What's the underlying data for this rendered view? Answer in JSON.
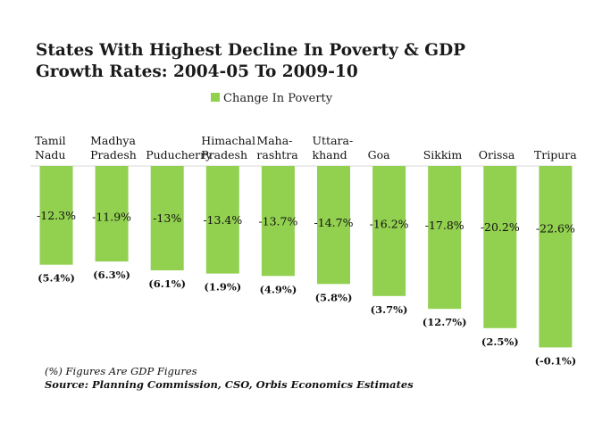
{
  "chart_data": {
    "type": "bar",
    "title_lines": [
      "States With Highest Decline In Poverty & GDP",
      "Growth Rates: 2004-05 To 2009-10"
    ],
    "legend": "Change In Poverty",
    "bar_color": "#92d050",
    "categories": [
      [
        "Tamil",
        "Nadu"
      ],
      [
        "Madhya",
        "Pradesh"
      ],
      [
        "Puducherry"
      ],
      [
        "Himachal",
        "Pradesh"
      ],
      [
        "Maha-",
        "rashtra"
      ],
      [
        "Uttara-",
        "khand"
      ],
      [
        "Goa"
      ],
      [
        "Sikkim"
      ],
      [
        "Orissa"
      ],
      [
        "Tripura"
      ]
    ],
    "series": [
      {
        "name": "Change In Poverty",
        "values": [
          -12.3,
          -11.9,
          -13,
          -13.4,
          -13.7,
          -14.7,
          -16.2,
          -17.8,
          -20.2,
          -22.6
        ],
        "labels": [
          "-12.3%",
          "-11.9%",
          "-13%",
          "-13.4%",
          "-13.7%",
          "-14.7%",
          "-16.2%",
          "-17.8%",
          "-20.2%",
          "-22.6%"
        ]
      }
    ],
    "gdp_labels": [
      "(5.4%)",
      "(6.3%)",
      "(6.1%)",
      "(1.9%)",
      "(4.9%)",
      "(5.8%)",
      "(3.7%)",
      "(12.7%)",
      "(2.5%)",
      "(-0.1%)"
    ],
    "ylim": [
      -23,
      0
    ],
    "grid": false,
    "note": "(%) Figures Are GDP Figures",
    "source": "Source: Planning Commission, CSO, Orbis Economics Estimates"
  }
}
